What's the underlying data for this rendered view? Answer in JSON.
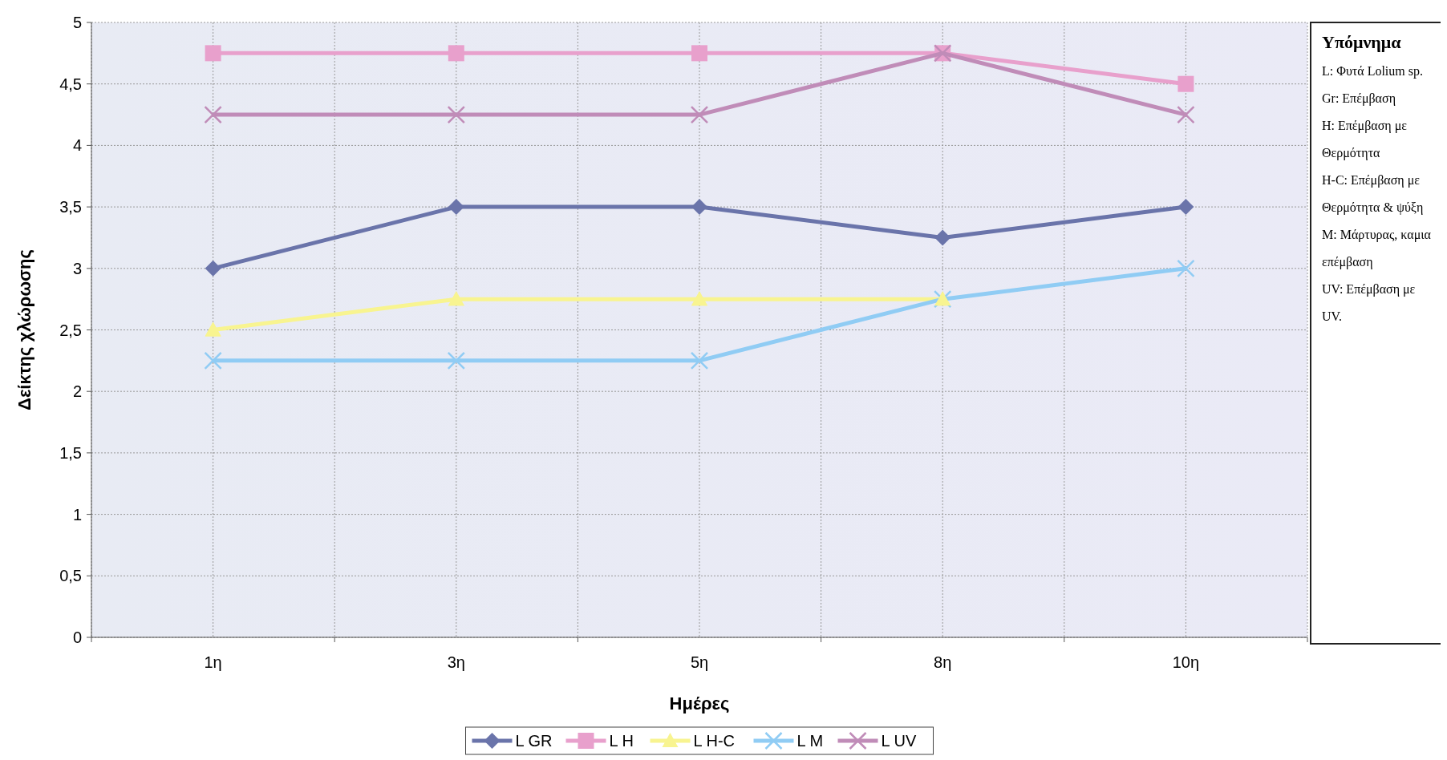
{
  "chart_data": {
    "type": "line",
    "xlabel": "Ημέρες",
    "ylabel": "Δείκτης χλώρωσης",
    "categories": [
      "1η",
      "3η",
      "5η",
      "8η",
      "10η"
    ],
    "ylim": [
      0,
      5
    ],
    "yticks": [
      0,
      {
        "value": 0.5,
        "label": "0,5"
      },
      1,
      {
        "value": 1.5,
        "label": "1,5"
      },
      2,
      {
        "value": 2.5,
        "label": "2,5"
      },
      3,
      {
        "value": 3.5,
        "label": "3,5"
      },
      4,
      {
        "value": 4.5,
        "label": "4,5"
      },
      5
    ],
    "grid": true,
    "legend": "bottom",
    "line_style": "solid",
    "series": [
      {
        "name": "L GR",
        "color": "#6a74aa",
        "marker": "diamond",
        "values": [
          3,
          3.5,
          3.5,
          3.25,
          3.5
        ]
      },
      {
        "name": "L H",
        "color": "#e8a0cc",
        "marker": "square",
        "values": [
          4.75,
          4.75,
          4.75,
          4.75,
          4.5
        ]
      },
      {
        "name": "L H-C",
        "color": "#f8f490",
        "marker": "triangle",
        "values": [
          2.5,
          2.75,
          2.75,
          2.75,
          null
        ]
      },
      {
        "name": "L M",
        "color": "#90ccf4",
        "marker": "cross",
        "values": [
          2.25,
          2.25,
          2.25,
          2.75,
          3
        ]
      },
      {
        "name": "L UV",
        "color": "#c08cb8",
        "marker": "cross",
        "values": [
          4.25,
          4.25,
          4.25,
          4.75,
          4.25
        ]
      }
    ],
    "annotations": [
      "Υπόμνημα",
      "L: Φυτά Lolium sp.",
      "Gr: Επέμβαση",
      "H: Επέμβαση με Θερμότητα",
      "H-C: Επέμβαση με Θερμότητα & ψύξη",
      "M: Μάρτυρας, καμια επέμβαση",
      "UV: Επέμβαση με UV."
    ]
  }
}
